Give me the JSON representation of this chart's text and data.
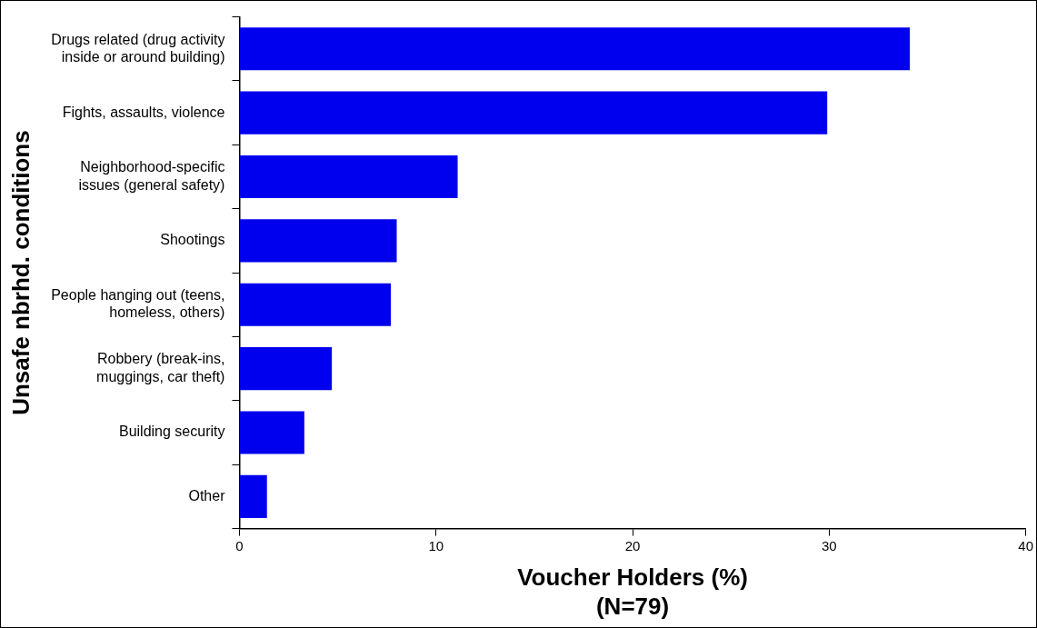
{
  "chart_data": {
    "type": "bar",
    "orientation": "horizontal",
    "xlabel": "Voucher Holders (%)\n(N=79)",
    "ylabel": "Unsafe nbrhd. conditions",
    "categories": [
      "Drugs related (drug activity inside or around building)",
      "Fights, assaults, violence",
      "Neighborhood-specific issues (general safety)",
      "Shootings",
      "People hanging out (teens, homeless, others)",
      "Robbery (break-ins, muggings, car theft)",
      "Building security",
      "Other"
    ],
    "values": [
      34.1,
      29.9,
      11.1,
      8.0,
      7.7,
      4.7,
      3.3,
      1.4
    ],
    "color": "#0000ee",
    "xlim": [
      0,
      40
    ],
    "xticks": [
      0,
      10,
      20,
      30,
      40
    ],
    "grid": false,
    "legend": false
  }
}
